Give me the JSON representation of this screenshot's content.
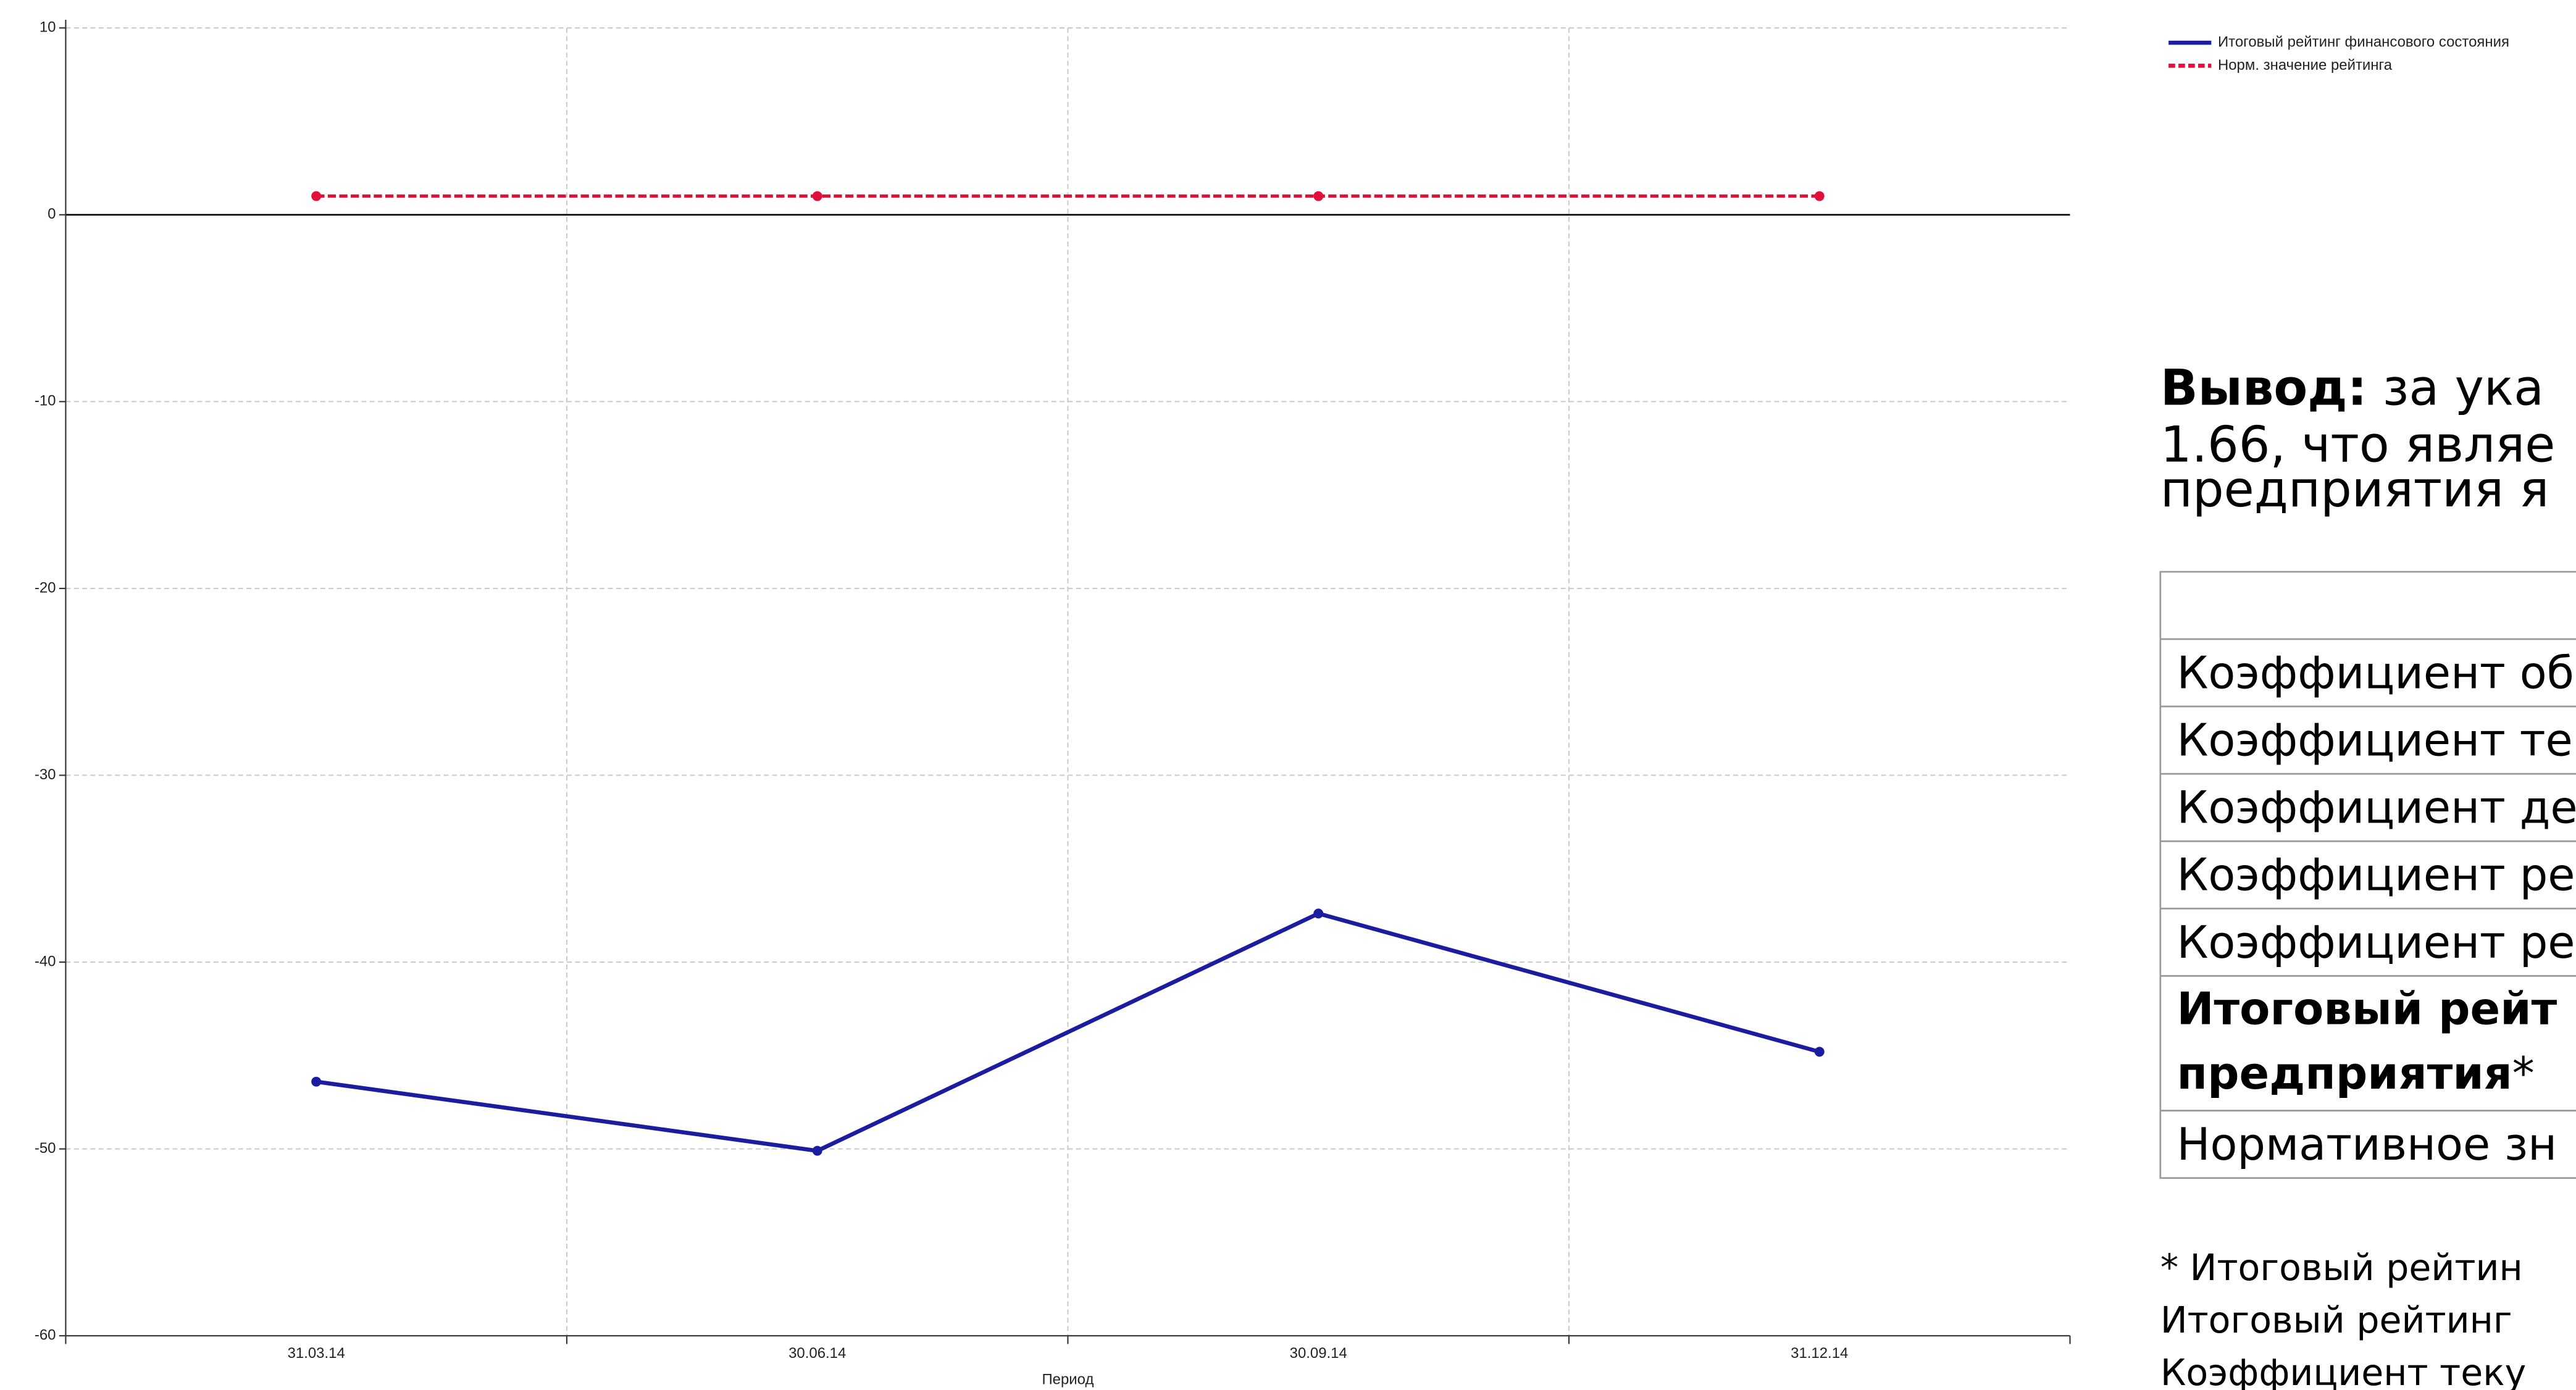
{
  "chart_data": {
    "type": "line",
    "categories": [
      "31.03.14",
      "30.06.14",
      "30.09.14",
      "31.12.14"
    ],
    "series": [
      {
        "name": "Итоговый рейтинг финансового состояния",
        "color": "#1c1ca0",
        "dash": false,
        "values": [
          -46.4,
          -50.1,
          -37.4,
          -44.8
        ]
      },
      {
        "name": "Норм. значение рейтинга",
        "color": "#e0103a",
        "dash": true,
        "values": [
          1,
          1,
          1,
          1
        ]
      }
    ],
    "xlabel": "Период",
    "ylim": [
      -60,
      10
    ],
    "yticks": [
      -60,
      -50,
      -40,
      -30,
      -20,
      -10,
      0,
      10
    ],
    "grid": true
  },
  "conclusion": {
    "label": "Вывод:",
    "lines": [
      " за ука",
      "1.66, что являе",
      "предприятия я"
    ]
  },
  "table": {
    "rows": [
      "Коэффициент об",
      "Коэффициент те",
      "Коэффициент де",
      "Коэффициент ре",
      "Коэффициент ре"
    ],
    "total": {
      "line1": "Итоговый рейт",
      "line2": "предприятия",
      "mark": "*"
    },
    "last": "Нормативное зн"
  },
  "footnote": [
    "* Итоговый рейтин",
    "Итоговый  рейтинг",
    "Коэффициент  теку"
  ]
}
